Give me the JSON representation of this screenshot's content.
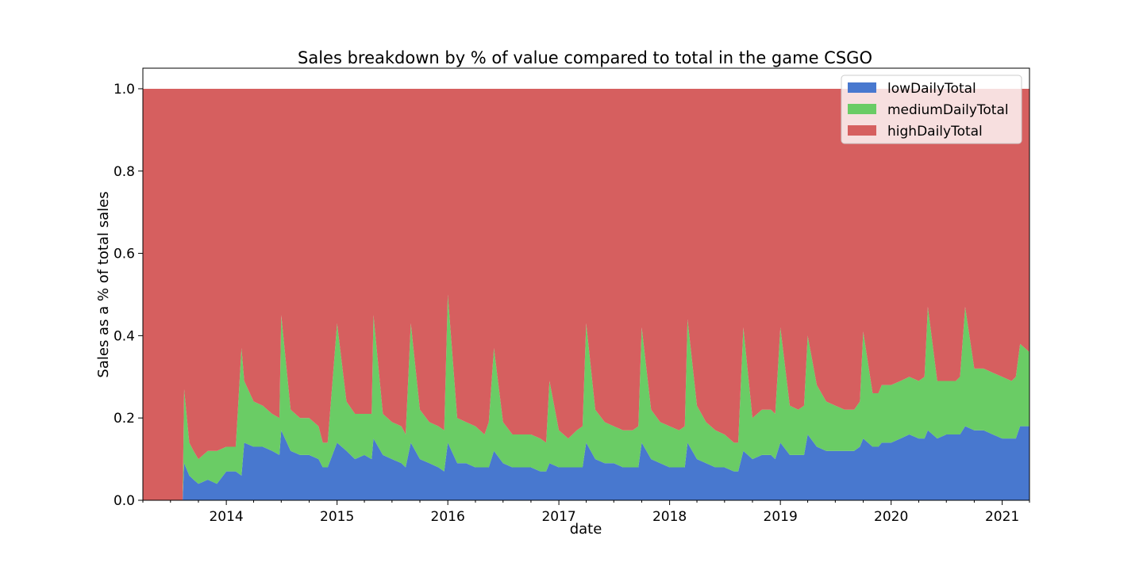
{
  "chart_data": {
    "type": "area",
    "stacked": true,
    "normalized": true,
    "title": "Sales breakdown by % of value compared to total in the game CSGO",
    "xlabel": "date",
    "ylabel": "Sales as a % of total sales",
    "xlim": [
      "2013-04-01",
      "2021-04-01"
    ],
    "ylim": [
      0,
      1.05
    ],
    "yticks": [
      0.0,
      0.2,
      0.4,
      0.6,
      0.8,
      1.0
    ],
    "ytick_labels": [
      "0.0",
      "0.2",
      "0.4",
      "0.6",
      "0.8",
      "1.0"
    ],
    "xticks": [
      "2014-01-01",
      "2015-01-01",
      "2016-01-01",
      "2017-01-01",
      "2018-01-01",
      "2019-01-01",
      "2020-01-01",
      "2021-01-01"
    ],
    "xtick_labels": [
      "2014",
      "2015",
      "2016",
      "2017",
      "2018",
      "2019",
      "2020",
      "2021"
    ],
    "legend_position": "top-right",
    "grid": false,
    "x": [
      "2013-04-01",
      "2013-08-10",
      "2013-08-15",
      "2013-09-01",
      "2013-09-15",
      "2013-10-01",
      "2013-11-01",
      "2013-12-01",
      "2014-01-01",
      "2014-02-01",
      "2014-02-20",
      "2014-03-01",
      "2014-04-01",
      "2014-05-01",
      "2014-06-01",
      "2014-06-25",
      "2014-07-01",
      "2014-08-01",
      "2014-09-01",
      "2014-10-01",
      "2014-11-01",
      "2014-11-15",
      "2014-12-01",
      "2015-01-01",
      "2015-02-01",
      "2015-03-01",
      "2015-04-01",
      "2015-04-25",
      "2015-05-01",
      "2015-06-01",
      "2015-07-01",
      "2015-08-01",
      "2015-08-15",
      "2015-09-01",
      "2015-10-01",
      "2015-11-01",
      "2015-12-01",
      "2015-12-20",
      "2016-01-01",
      "2016-02-01",
      "2016-03-01",
      "2016-04-01",
      "2016-05-01",
      "2016-05-15",
      "2016-06-01",
      "2016-07-01",
      "2016-08-01",
      "2016-09-01",
      "2016-10-01",
      "2016-11-01",
      "2016-11-20",
      "2016-12-01",
      "2017-01-01",
      "2017-02-01",
      "2017-03-01",
      "2017-03-20",
      "2017-04-01",
      "2017-05-01",
      "2017-06-01",
      "2017-07-01",
      "2017-08-01",
      "2017-09-01",
      "2017-09-20",
      "2017-10-01",
      "2017-11-01",
      "2017-12-01",
      "2018-01-01",
      "2018-02-01",
      "2018-02-20",
      "2018-03-01",
      "2018-04-01",
      "2018-05-01",
      "2018-06-01",
      "2018-07-01",
      "2018-08-01",
      "2018-08-15",
      "2018-09-01",
      "2018-10-01",
      "2018-11-01",
      "2018-12-01",
      "2018-12-15",
      "2019-01-01",
      "2019-02-01",
      "2019-03-01",
      "2019-03-20",
      "2019-04-01",
      "2019-05-01",
      "2019-06-01",
      "2019-07-01",
      "2019-08-01",
      "2019-09-01",
      "2019-09-20",
      "2019-10-01",
      "2019-11-01",
      "2019-11-20",
      "2019-12-01",
      "2020-01-01",
      "2020-02-01",
      "2020-03-01",
      "2020-04-01",
      "2020-04-20",
      "2020-05-01",
      "2020-06-01",
      "2020-07-01",
      "2020-08-01",
      "2020-08-15",
      "2020-09-01",
      "2020-10-01",
      "2020-11-01",
      "2020-12-01",
      "2021-01-01",
      "2021-02-01",
      "2021-02-15",
      "2021-03-01",
      "2021-04-01"
    ],
    "series": [
      {
        "name": "lowDailyTotal",
        "color": "#4878CF",
        "values": [
          0.0,
          0.0,
          0.09,
          0.06,
          0.05,
          0.04,
          0.05,
          0.04,
          0.07,
          0.07,
          0.06,
          0.14,
          0.13,
          0.13,
          0.12,
          0.11,
          0.17,
          0.12,
          0.11,
          0.11,
          0.1,
          0.08,
          0.08,
          0.14,
          0.12,
          0.1,
          0.11,
          0.1,
          0.15,
          0.11,
          0.1,
          0.09,
          0.08,
          0.14,
          0.1,
          0.09,
          0.08,
          0.07,
          0.14,
          0.09,
          0.09,
          0.08,
          0.08,
          0.08,
          0.12,
          0.09,
          0.08,
          0.08,
          0.08,
          0.07,
          0.07,
          0.09,
          0.08,
          0.08,
          0.08,
          0.08,
          0.14,
          0.1,
          0.09,
          0.09,
          0.08,
          0.08,
          0.08,
          0.14,
          0.1,
          0.09,
          0.08,
          0.08,
          0.08,
          0.14,
          0.1,
          0.09,
          0.08,
          0.08,
          0.07,
          0.07,
          0.12,
          0.1,
          0.11,
          0.11,
          0.1,
          0.14,
          0.11,
          0.11,
          0.11,
          0.16,
          0.13,
          0.12,
          0.12,
          0.12,
          0.12,
          0.13,
          0.15,
          0.13,
          0.13,
          0.14,
          0.14,
          0.15,
          0.16,
          0.15,
          0.15,
          0.17,
          0.15,
          0.16,
          0.16,
          0.16,
          0.18,
          0.17,
          0.17,
          0.16,
          0.15,
          0.15,
          0.15,
          0.18,
          0.18
        ]
      },
      {
        "name": "mediumDailyTotal",
        "color": "#6ACC65",
        "values": [
          0.0,
          0.0,
          0.18,
          0.08,
          0.07,
          0.06,
          0.07,
          0.08,
          0.06,
          0.06,
          0.31,
          0.15,
          0.11,
          0.1,
          0.09,
          0.09,
          0.28,
          0.1,
          0.09,
          0.09,
          0.08,
          0.06,
          0.06,
          0.29,
          0.12,
          0.11,
          0.1,
          0.11,
          0.3,
          0.1,
          0.09,
          0.09,
          0.08,
          0.29,
          0.12,
          0.1,
          0.1,
          0.1,
          0.36,
          0.11,
          0.1,
          0.1,
          0.08,
          0.11,
          0.25,
          0.1,
          0.08,
          0.08,
          0.08,
          0.08,
          0.07,
          0.2,
          0.09,
          0.07,
          0.09,
          0.1,
          0.29,
          0.12,
          0.1,
          0.09,
          0.09,
          0.09,
          0.1,
          0.28,
          0.12,
          0.1,
          0.1,
          0.09,
          0.1,
          0.3,
          0.13,
          0.1,
          0.09,
          0.08,
          0.07,
          0.07,
          0.3,
          0.1,
          0.11,
          0.11,
          0.11,
          0.28,
          0.12,
          0.11,
          0.12,
          0.24,
          0.15,
          0.12,
          0.11,
          0.1,
          0.1,
          0.11,
          0.26,
          0.13,
          0.13,
          0.14,
          0.14,
          0.14,
          0.14,
          0.14,
          0.15,
          0.3,
          0.14,
          0.13,
          0.13,
          0.14,
          0.29,
          0.15,
          0.15,
          0.15,
          0.15,
          0.14,
          0.15,
          0.2,
          0.18
        ]
      },
      {
        "name": "highDailyTotal",
        "color": "#D65F5F",
        "values": [
          1.0,
          1.0,
          0.73,
          0.86,
          0.88,
          0.9,
          0.88,
          0.88,
          0.87,
          0.87,
          0.63,
          0.71,
          0.76,
          0.77,
          0.79,
          0.8,
          0.55,
          0.78,
          0.8,
          0.8,
          0.82,
          0.86,
          0.86,
          0.57,
          0.76,
          0.79,
          0.79,
          0.79,
          0.55,
          0.79,
          0.81,
          0.82,
          0.84,
          0.57,
          0.78,
          0.81,
          0.82,
          0.83,
          0.5,
          0.8,
          0.81,
          0.82,
          0.84,
          0.81,
          0.63,
          0.81,
          0.84,
          0.84,
          0.84,
          0.85,
          0.86,
          0.71,
          0.83,
          0.85,
          0.83,
          0.82,
          0.57,
          0.78,
          0.81,
          0.82,
          0.83,
          0.83,
          0.82,
          0.58,
          0.78,
          0.81,
          0.82,
          0.83,
          0.82,
          0.56,
          0.77,
          0.81,
          0.83,
          0.84,
          0.86,
          0.86,
          0.58,
          0.8,
          0.78,
          0.78,
          0.79,
          0.58,
          0.77,
          0.78,
          0.77,
          0.6,
          0.72,
          0.76,
          0.77,
          0.78,
          0.78,
          0.76,
          0.59,
          0.74,
          0.74,
          0.72,
          0.72,
          0.71,
          0.7,
          0.71,
          0.7,
          0.53,
          0.71,
          0.71,
          0.71,
          0.7,
          0.53,
          0.68,
          0.68,
          0.69,
          0.7,
          0.71,
          0.7,
          0.62,
          0.64
        ]
      }
    ]
  }
}
